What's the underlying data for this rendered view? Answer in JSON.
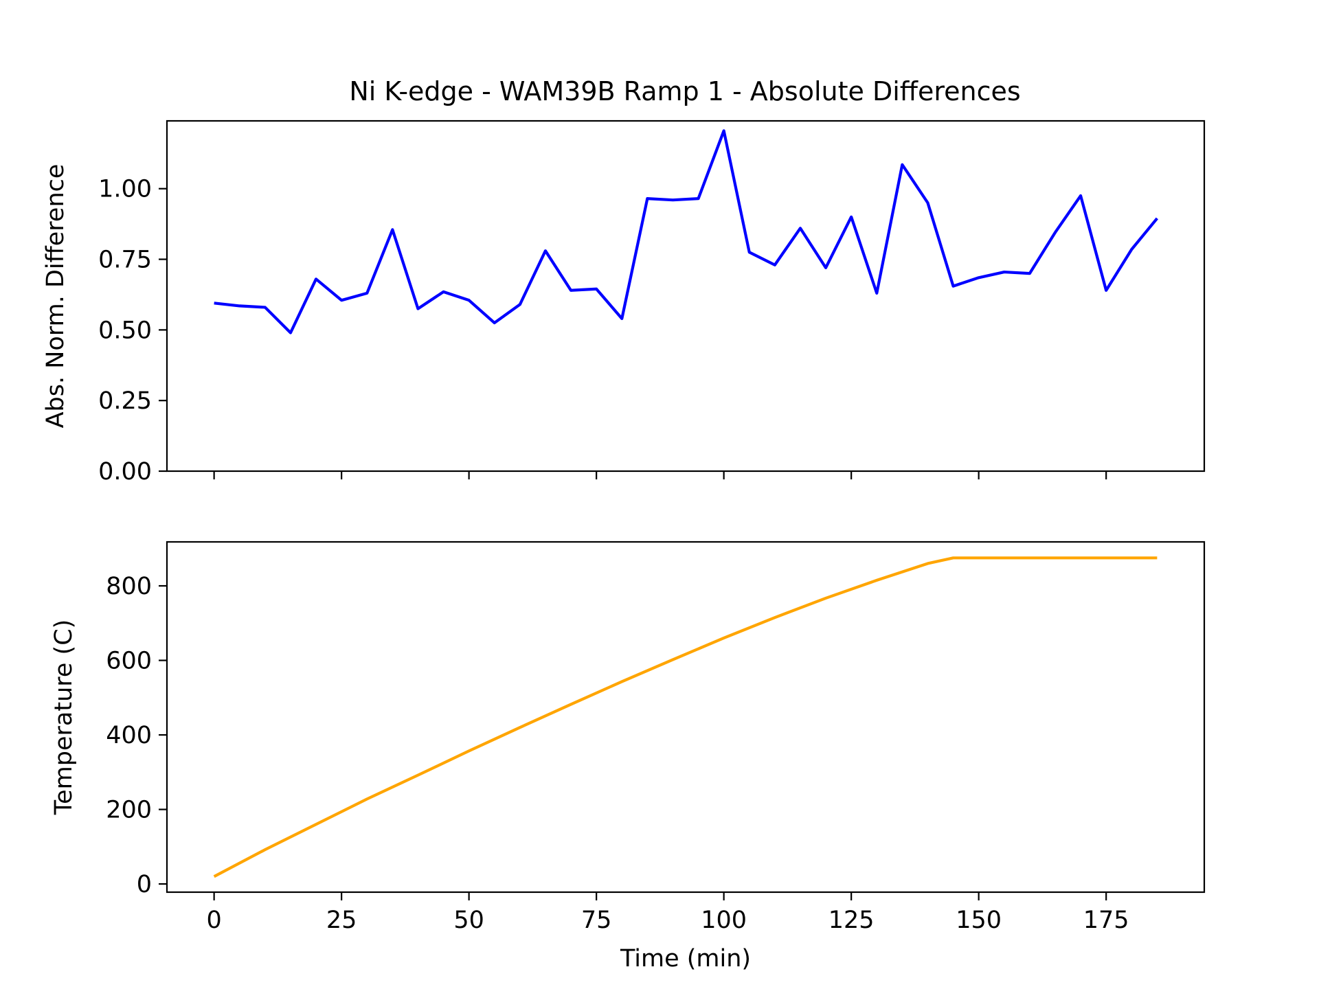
{
  "figure": {
    "title": "Ni K-edge - WAM39B Ramp 1 - Absolute Differences"
  },
  "chart_data": [
    {
      "type": "line",
      "panel": "top",
      "title": "Ni K-edge - WAM39B Ramp 1 - Absolute Differences",
      "xlabel": "",
      "ylabel": "Abs. Norm. Difference",
      "xlim": [
        -9.25,
        194.25
      ],
      "ylim": [
        0,
        1.24
      ],
      "xticks": [
        0,
        25,
        50,
        75,
        100,
        125,
        150,
        175
      ],
      "show_xticklabels": false,
      "yticks": [
        0,
        0.25,
        0.5,
        0.75,
        1.0
      ],
      "ytick_labels": [
        "0.00",
        "0.25",
        "0.50",
        "0.75",
        "1.00"
      ],
      "grid": false,
      "series": [
        {
          "color": "#0000ff",
          "x": [
            0,
            5,
            10,
            15,
            20,
            25,
            30,
            35,
            40,
            45,
            50,
            55,
            60,
            65,
            70,
            75,
            80,
            85,
            90,
            95,
            100,
            105,
            110,
            115,
            120,
            125,
            130,
            135,
            140,
            145,
            150,
            155,
            160,
            165,
            170,
            175,
            180,
            185
          ],
          "y": [
            0.595,
            0.585,
            0.58,
            0.49,
            0.68,
            0.605,
            0.63,
            0.855,
            0.575,
            0.635,
            0.605,
            0.525,
            0.59,
            0.78,
            0.64,
            0.645,
            0.54,
            0.965,
            0.96,
            0.965,
            1.205,
            0.775,
            0.73,
            0.86,
            0.72,
            0.9,
            0.63,
            1.085,
            0.95,
            0.655,
            0.685,
            0.705,
            0.7,
            0.845,
            0.975,
            0.64,
            0.785,
            0.895
          ]
        }
      ]
    },
    {
      "type": "line",
      "panel": "bottom",
      "xlabel": "Time (min)",
      "ylabel": "Temperature (C)",
      "xlim": [
        -9.25,
        194.25
      ],
      "ylim": [
        -22,
        918
      ],
      "xticks": [
        0,
        25,
        50,
        75,
        100,
        125,
        150,
        175
      ],
      "xtick_labels": [
        "0",
        "25",
        "50",
        "75",
        "100",
        "125",
        "150",
        "175"
      ],
      "yticks": [
        0,
        200,
        400,
        600,
        800
      ],
      "ytick_labels": [
        "0",
        "200",
        "400",
        "600",
        "800"
      ],
      "grid": false,
      "series": [
        {
          "color": "#ffa500",
          "x": [
            0,
            10,
            20,
            30,
            40,
            50,
            60,
            70,
            80,
            90,
            100,
            110,
            120,
            130,
            140,
            145,
            150,
            160,
            170,
            180,
            185
          ],
          "y": [
            20,
            92,
            160,
            228,
            292,
            357,
            420,
            482,
            543,
            602,
            660,
            715,
            767,
            815,
            860,
            875,
            875,
            875,
            875,
            875,
            875
          ]
        }
      ]
    }
  ]
}
